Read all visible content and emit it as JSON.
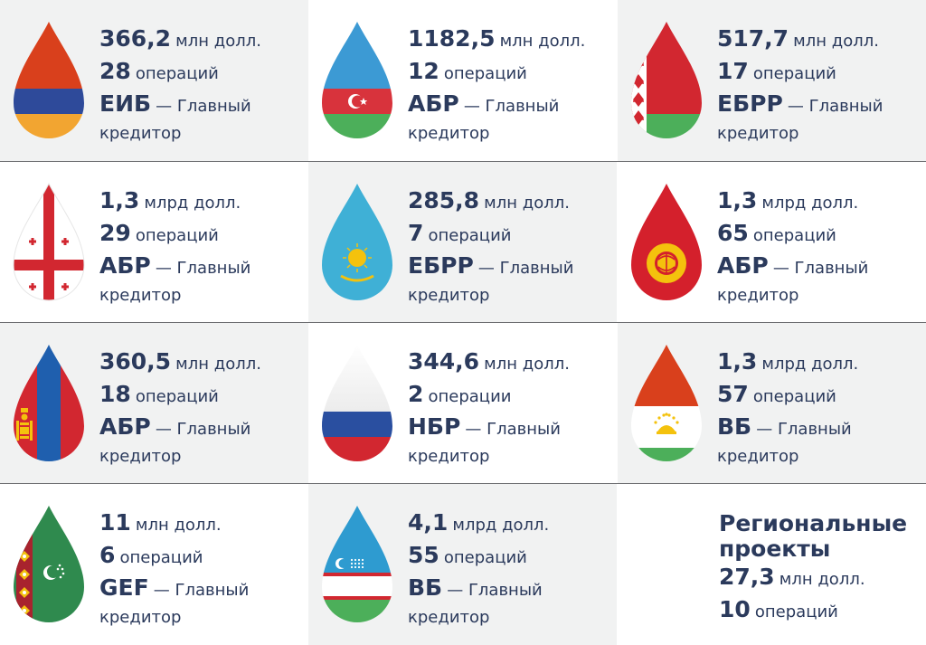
{
  "items": [
    {
      "amount": "366,2",
      "unit": "млн долл.",
      "ops": "28",
      "ops_word": "операций",
      "bank": "ЕИБ",
      "role": "— Главный",
      "cred": "кредитор"
    },
    {
      "amount": "1182,5",
      "unit": "млн долл.",
      "ops": "12",
      "ops_word": "операций",
      "bank": "АБР",
      "role": "— Главный",
      "cred": "кредитор"
    },
    {
      "amount": "517,7",
      "unit": "млн долл.",
      "ops": "17",
      "ops_word": "операций",
      "bank": "ЕБРР",
      "role": "— Главный",
      "cred": "кредитор"
    },
    {
      "amount": "1,3",
      "unit": "млрд долл.",
      "ops": "29",
      "ops_word": "операций",
      "bank": "АБР",
      "role": "— Главный",
      "cred": "кредитор"
    },
    {
      "amount": "285,8",
      "unit": "млн долл.",
      "ops": "7",
      "ops_word": "операций",
      "bank": "ЕБРР",
      "role": "— Главный",
      "cred": "кредитор"
    },
    {
      "amount": "1,3",
      "unit": "млрд долл.",
      "ops": "65",
      "ops_word": "операций",
      "bank": "АБР",
      "role": "— Главный",
      "cred": "кредитор"
    },
    {
      "amount": "360,5",
      "unit": "млн долл.",
      "ops": "18",
      "ops_word": "операций",
      "bank": "АБР",
      "role": "— Главный",
      "cred": "кредитор"
    },
    {
      "amount": "344,6",
      "unit": "млн долл.",
      "ops": "2",
      "ops_word": "операции",
      "bank": "НБР",
      "role": "— Главный",
      "cred": "кредитор"
    },
    {
      "amount": "1,3",
      "unit": "млрд долл.",
      "ops": "57",
      "ops_word": "операций",
      "bank": "ВБ",
      "role": "— Главный",
      "cred": "кредитор"
    },
    {
      "amount": "11",
      "unit": "млн долл.",
      "ops": "6",
      "ops_word": "операций",
      "bank": "GEF",
      "role": "— Главный",
      "cred": "кредитор"
    },
    {
      "amount": "4,1",
      "unit": "млрд долл.",
      "ops": "55",
      "ops_word": "операций",
      "bank": "ВБ",
      "role": "— Главный",
      "cred": "кредитор"
    }
  ],
  "regional": {
    "title1": "Региональные",
    "title2": "проекты",
    "amount": "27,3",
    "unit": "млн долл.",
    "ops": "10",
    "ops_word": "операций"
  },
  "colors": {
    "text": "#2b3a5c",
    "shade": "#f1f2f2",
    "divider": "#6d6e71"
  },
  "flags": [
    "armenia-flag-icon",
    "azerbaijan-flag-icon",
    "belarus-flag-icon",
    "georgia-flag-icon",
    "kazakhstan-flag-icon",
    "kyrgyzstan-flag-icon",
    "mongolia-flag-icon",
    "russia-flag-icon",
    "tajikistan-flag-icon",
    "turkmenistan-flag-icon",
    "uzbekistan-flag-icon"
  ]
}
